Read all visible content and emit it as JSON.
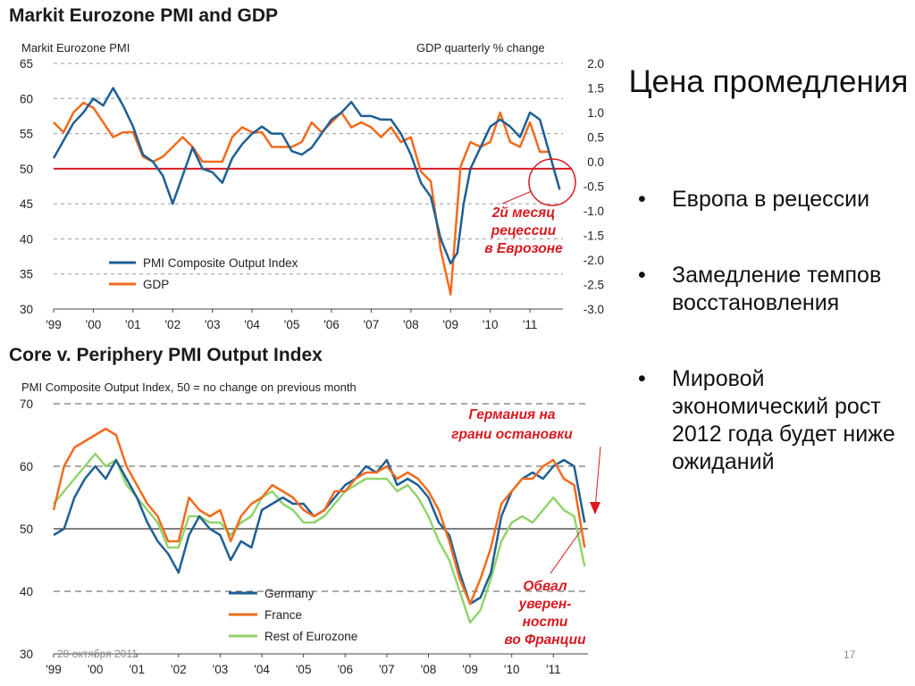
{
  "slide": {
    "title": "Цена промедления",
    "bullets": [
      "Европа в рецессии",
      "Замедление темпов восстановления",
      "Мировой экономический рост 2012 года будет ниже ожиданий"
    ],
    "footer_date": "28 октября 2011",
    "page_number": "17"
  },
  "colors": {
    "blue": "#1f5f94",
    "orange": "#f26b1d",
    "green": "#92d36e",
    "red": "#d71920",
    "grid": "#9a9a9a"
  },
  "chart_data": [
    {
      "type": "line",
      "title": "Markit Eurozone PMI and GDP",
      "ylabel_left": "Markit Eurozone PMI",
      "ylabel_right": "GDP quarterly % change",
      "ylim_left": [
        30,
        65
      ],
      "ylim_right": [
        -3.0,
        2.0
      ],
      "yticks_left": [
        "65",
        "60",
        "55",
        "50",
        "45",
        "40",
        "35",
        "30"
      ],
      "yticks_right": [
        "2.0",
        "1.5",
        "1.0",
        "0.5",
        "0.0",
        "-0.5",
        "-1.0",
        "-1.5",
        "-2.0",
        "-2.5",
        "-3.0"
      ],
      "x_ticks": [
        "'99",
        "'00",
        "'01",
        "'02",
        "'03",
        "'04",
        "'05",
        "'06",
        "'07",
        "'08",
        "'09",
        "'10",
        "'11"
      ],
      "xlim": [
        1999,
        2011.83
      ],
      "grid": true,
      "reference_line": {
        "axis": "left",
        "value": 50,
        "color": "red"
      },
      "legend": "bottom-left",
      "series": [
        {
          "name": "PMI Composite Output Index",
          "axis": "left",
          "x": [
            1999.0,
            1999.25,
            1999.5,
            1999.75,
            2000.0,
            2000.25,
            2000.5,
            2000.75,
            2001.0,
            2001.25,
            2001.5,
            2001.75,
            2002.0,
            2002.25,
            2002.5,
            2002.75,
            2003.0,
            2003.25,
            2003.5,
            2003.75,
            2004.0,
            2004.25,
            2004.5,
            2004.75,
            2005.0,
            2005.25,
            2005.5,
            2005.75,
            2006.0,
            2006.25,
            2006.5,
            2006.75,
            2007.0,
            2007.25,
            2007.5,
            2007.75,
            2008.0,
            2008.25,
            2008.5,
            2008.75,
            2009.0,
            2009.17,
            2009.33,
            2009.5,
            2009.75,
            2010.0,
            2010.25,
            2010.5,
            2010.75,
            2011.0,
            2011.25,
            2011.5,
            2011.75
          ],
          "y": [
            51.5,
            54,
            56.5,
            58,
            60,
            59,
            61.5,
            59,
            56,
            52,
            51,
            49,
            45,
            49,
            53,
            50,
            49.5,
            48,
            51.5,
            53.5,
            55,
            56,
            55,
            55,
            52.5,
            52,
            53,
            55,
            57,
            58,
            59.5,
            57.5,
            57.5,
            57,
            57,
            55,
            52,
            48,
            46,
            40,
            36.5,
            38,
            45,
            50,
            53,
            56,
            57,
            56,
            54.5,
            58,
            57,
            52,
            47
          ]
        },
        {
          "name": "GDP",
          "axis": "right",
          "x": [
            1999.0,
            1999.25,
            1999.5,
            1999.75,
            2000.0,
            2000.25,
            2000.5,
            2000.75,
            2001.0,
            2001.25,
            2001.5,
            2001.75,
            2002.0,
            2002.25,
            2002.5,
            2002.75,
            2003.0,
            2003.25,
            2003.5,
            2003.75,
            2004.0,
            2004.25,
            2004.5,
            2004.75,
            2005.0,
            2005.25,
            2005.5,
            2005.75,
            2006.0,
            2006.25,
            2006.5,
            2006.75,
            2007.0,
            2007.25,
            2007.5,
            2007.75,
            2008.0,
            2008.25,
            2008.5,
            2008.75,
            2009.0,
            2009.25,
            2009.5,
            2009.75,
            2010.0,
            2010.25,
            2010.5,
            2010.75,
            2011.0,
            2011.25,
            2011.5
          ],
          "y": [
            0.8,
            0.6,
            1.0,
            1.2,
            1.1,
            0.8,
            0.5,
            0.6,
            0.6,
            0.1,
            0.0,
            0.1,
            0.3,
            0.5,
            0.3,
            0.0,
            0.0,
            0.0,
            0.5,
            0.7,
            0.6,
            0.6,
            0.3,
            0.3,
            0.3,
            0.4,
            0.8,
            0.6,
            0.8,
            1.0,
            0.7,
            0.8,
            0.7,
            0.5,
            0.7,
            0.4,
            0.5,
            -0.2,
            -0.4,
            -1.8,
            -2.7,
            -0.1,
            0.4,
            0.3,
            0.4,
            1.0,
            0.4,
            0.3,
            0.8,
            0.2,
            0.2
          ]
        }
      ]
    },
    {
      "type": "line",
      "title": "Core v. Periphery PMI Output Index",
      "ylabel": "PMI Composite Output Index, 50 = no change on previous month",
      "ylim": [
        30,
        70
      ],
      "yticks": [
        "70",
        "60",
        "50",
        "40",
        "30"
      ],
      "x_ticks": [
        "'99",
        "'00",
        "'01",
        "'02",
        "'03",
        "'04",
        "'05",
        "'06",
        "'07",
        "'08",
        "'09",
        "'10",
        "'11"
      ],
      "xlim": [
        1999,
        2011.83
      ],
      "grid": true,
      "legend": "bottom-left",
      "series": [
        {
          "name": "Germany",
          "x": [
            1999.0,
            1999.25,
            1999.5,
            1999.75,
            2000.0,
            2000.25,
            2000.5,
            2000.75,
            2001.0,
            2001.25,
            2001.5,
            2001.75,
            2002.0,
            2002.25,
            2002.5,
            2002.75,
            2003.0,
            2003.25,
            2003.5,
            2003.75,
            2004.0,
            2004.25,
            2004.5,
            2004.75,
            2005.0,
            2005.25,
            2005.5,
            2005.75,
            2006.0,
            2006.25,
            2006.5,
            2006.75,
            2007.0,
            2007.25,
            2007.5,
            2007.75,
            2008.0,
            2008.25,
            2008.5,
            2008.75,
            2009.0,
            2009.25,
            2009.5,
            2009.75,
            2010.0,
            2010.25,
            2010.5,
            2010.75,
            2011.0,
            2011.25,
            2011.5,
            2011.75
          ],
          "y": [
            49,
            50,
            55,
            58,
            60,
            58,
            61,
            58,
            55,
            51,
            48,
            46,
            43,
            49,
            52,
            50,
            49,
            45,
            48,
            47,
            53,
            54,
            55,
            54,
            54,
            52,
            53,
            55,
            57,
            58,
            60,
            59,
            61,
            57,
            58,
            57,
            55,
            51,
            49,
            43,
            38,
            39,
            43,
            52,
            56,
            58,
            59,
            58,
            60,
            61,
            60,
            51
          ]
        },
        {
          "name": "France",
          "x": [
            1999.0,
            1999.25,
            1999.5,
            1999.75,
            2000.0,
            2000.25,
            2000.5,
            2000.75,
            2001.0,
            2001.25,
            2001.5,
            2001.75,
            2002.0,
            2002.25,
            2002.5,
            2002.75,
            2003.0,
            2003.25,
            2003.5,
            2003.75,
            2004.0,
            2004.25,
            2004.5,
            2004.75,
            2005.0,
            2005.25,
            2005.5,
            2005.75,
            2006.0,
            2006.25,
            2006.5,
            2006.75,
            2007.0,
            2007.25,
            2007.5,
            2007.75,
            2008.0,
            2008.25,
            2008.5,
            2008.75,
            2009.0,
            2009.25,
            2009.5,
            2009.75,
            2010.0,
            2010.25,
            2010.5,
            2010.75,
            2011.0,
            2011.25,
            2011.5,
            2011.75
          ],
          "y": [
            53,
            60,
            63,
            64,
            65,
            66,
            65,
            60,
            57,
            54,
            52,
            48,
            48,
            55,
            53,
            52,
            53,
            48,
            52,
            54,
            55,
            57,
            56,
            55,
            53,
            52,
            53,
            56,
            56,
            58,
            59,
            59,
            60,
            58,
            59,
            58,
            56,
            53,
            48,
            42,
            38,
            42,
            47,
            54,
            56,
            58,
            58,
            60,
            61,
            58,
            57,
            47
          ]
        },
        {
          "name": "Rest of Eurozone",
          "x": [
            1999.0,
            1999.25,
            1999.5,
            1999.75,
            2000.0,
            2000.25,
            2000.5,
            2000.75,
            2001.0,
            2001.25,
            2001.5,
            2001.75,
            2002.0,
            2002.25,
            2002.5,
            2002.75,
            2003.0,
            2003.25,
            2003.5,
            2003.75,
            2004.0,
            2004.25,
            2004.5,
            2004.75,
            2005.0,
            2005.25,
            2005.5,
            2005.75,
            2006.0,
            2006.25,
            2006.5,
            2006.75,
            2007.0,
            2007.25,
            2007.5,
            2007.75,
            2008.0,
            2008.25,
            2008.5,
            2008.75,
            2009.0,
            2009.25,
            2009.5,
            2009.75,
            2010.0,
            2010.25,
            2010.5,
            2010.75,
            2011.0,
            2011.25,
            2011.5,
            2011.75
          ],
          "y": [
            54,
            56,
            58,
            60,
            62,
            60,
            61,
            57,
            55,
            53,
            51,
            47,
            47,
            52,
            52,
            51,
            51,
            49,
            51,
            52,
            55,
            56,
            54,
            53,
            51,
            51,
            52,
            54,
            56,
            57,
            58,
            58,
            58,
            56,
            57,
            55,
            52,
            48,
            45,
            40,
            35,
            37,
            42,
            48,
            51,
            52,
            51,
            53,
            55,
            53,
            52,
            44
          ]
        }
      ]
    }
  ],
  "annotations": {
    "recession": "2й месяц рецессии в Еврозоне",
    "germany": "Германия на грани остановки",
    "france": "Обвал уверен-ности во Франции"
  }
}
